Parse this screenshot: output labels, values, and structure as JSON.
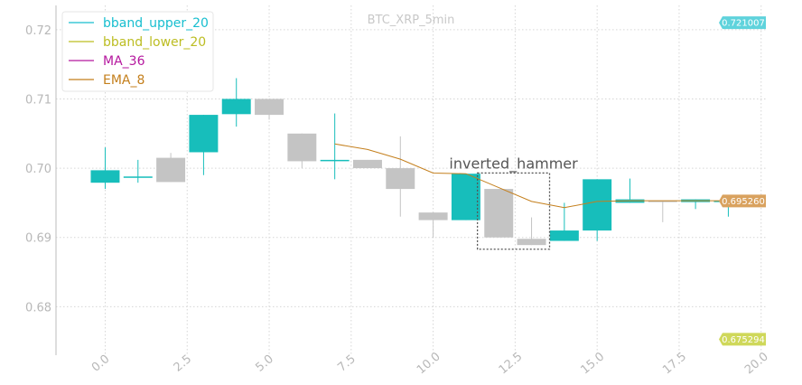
{
  "chart_data": {
    "type": "candlestick",
    "title": "BTC_XRP_5min",
    "xlim": [
      -1.5,
      20.2
    ],
    "ylim": [
      0.673,
      0.7235
    ],
    "x_ticks": [
      0,
      2.5,
      5,
      7.5,
      10,
      12.5,
      15,
      17.5,
      20
    ],
    "x_tick_labels": [
      "0.0",
      "2.5",
      "5.0",
      "7.5",
      "10.0",
      "12.5",
      "15.0",
      "17.5",
      "20.0"
    ],
    "y_ticks": [
      0.68,
      0.69,
      0.7,
      0.71,
      0.72
    ],
    "y_tick_labels": [
      "0.68",
      "0.69",
      "0.70",
      "0.71",
      "0.72"
    ],
    "grid": true,
    "legend_position": "top-left",
    "candles": [
      {
        "x": 0,
        "open": 0.6979,
        "high": 0.703,
        "low": 0.697,
        "close": 0.6997
      },
      {
        "x": 1,
        "open": 0.6988,
        "high": 0.7012,
        "low": 0.6979,
        "close": 0.6988
      },
      {
        "x": 2,
        "open": 0.7015,
        "high": 0.7022,
        "low": 0.698,
        "close": 0.698
      },
      {
        "x": 3,
        "open": 0.7023,
        "high": 0.7077,
        "low": 0.699,
        "close": 0.7077
      },
      {
        "x": 4,
        "open": 0.7078,
        "high": 0.713,
        "low": 0.706,
        "close": 0.71
      },
      {
        "x": 5,
        "open": 0.71,
        "high": 0.71,
        "low": 0.707,
        "close": 0.7077
      },
      {
        "x": 6,
        "open": 0.705,
        "high": 0.705,
        "low": 0.7,
        "close": 0.701
      },
      {
        "x": 7,
        "open": 0.7011,
        "high": 0.7079,
        "low": 0.6984,
        "close": 0.7012
      },
      {
        "x": 8,
        "open": 0.7012,
        "high": 0.7012,
        "low": 0.7,
        "close": 0.7
      },
      {
        "x": 9,
        "open": 0.7,
        "high": 0.7046,
        "low": 0.693,
        "close": 0.697
      },
      {
        "x": 10,
        "open": 0.6936,
        "high": 0.6936,
        "low": 0.69,
        "close": 0.6925
      },
      {
        "x": 11,
        "open": 0.6925,
        "high": 0.6992,
        "low": 0.6925,
        "close": 0.6992
      },
      {
        "x": 12,
        "open": 0.697,
        "high": 0.697,
        "low": 0.69,
        "close": 0.69
      },
      {
        "x": 13,
        "open": 0.6898,
        "high": 0.6929,
        "low": 0.6889,
        "close": 0.6889
      },
      {
        "x": 14,
        "open": 0.6895,
        "high": 0.695,
        "low": 0.6895,
        "close": 0.691
      },
      {
        "x": 15,
        "open": 0.691,
        "high": 0.6984,
        "low": 0.6895,
        "close": 0.6984
      },
      {
        "x": 16,
        "open": 0.695,
        "high": 0.6985,
        "low": 0.695,
        "close": 0.6955
      },
      {
        "x": 17,
        "open": 0.6953,
        "high": 0.6953,
        "low": 0.6922,
        "close": 0.6951
      },
      {
        "x": 18,
        "open": 0.6951,
        "high": 0.6955,
        "low": 0.6941,
        "close": 0.6955
      },
      {
        "x": 19,
        "open": 0.6953,
        "high": 0.6953,
        "low": 0.693,
        "close": 0.6953
      }
    ],
    "series": [
      {
        "name": "bband_upper_20",
        "color": "#17becf",
        "x": [],
        "values": []
      },
      {
        "name": "bband_lower_20",
        "color": "#bcbd22",
        "x": [],
        "values": []
      },
      {
        "name": "MA_36",
        "color": "#b5179e",
        "x": [],
        "values": []
      },
      {
        "name": "EMA_8",
        "color": "#c47f1c",
        "x": [
          7,
          8,
          9,
          10,
          11,
          12,
          13,
          14,
          15,
          16,
          17,
          18,
          19,
          20
        ],
        "values": [
          0.7035,
          0.7027,
          0.7013,
          0.6993,
          0.6992,
          0.6972,
          0.6952,
          0.6943,
          0.6952,
          0.6953,
          0.6953,
          0.6953,
          0.6953,
          0.6953
        ]
      }
    ],
    "annotations": [
      {
        "text": "inverted_hammer",
        "x_range": [
          11.35,
          13.55
        ],
        "y_range": [
          0.6883,
          0.6993
        ]
      }
    ],
    "value_tags": [
      {
        "value": 0.721007,
        "label": "0.721007",
        "color": "#5fd3dc"
      },
      {
        "value": 0.69526,
        "label": "0.695260",
        "color": "#d9a25f"
      },
      {
        "value": 0.675294,
        "label": "0.675294",
        "color": "#cfd85a"
      }
    ],
    "up_color": "#17bebb",
    "down_color": "#c4c4c4"
  }
}
